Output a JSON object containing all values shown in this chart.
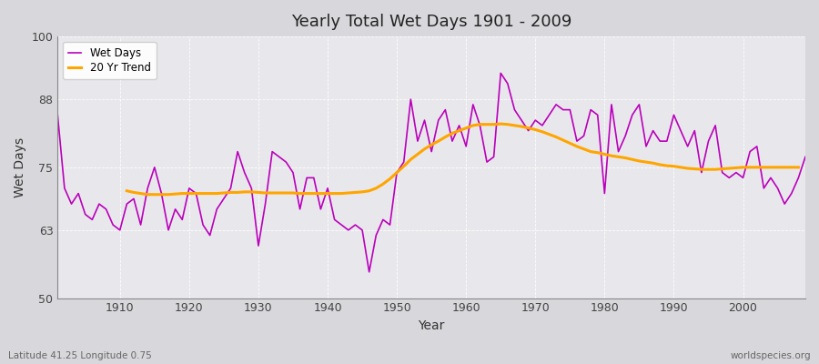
{
  "title": "Yearly Total Wet Days 1901 - 2009",
  "xlabel": "Year",
  "ylabel": "Wet Days",
  "subtitle_left": "Latitude 41.25 Longitude 0.75",
  "subtitle_right": "worldspecies.org",
  "ylim": [
    50,
    100
  ],
  "xlim": [
    1901,
    2009
  ],
  "yticks": [
    50,
    63,
    75,
    88,
    100
  ],
  "xticks": [
    1910,
    1920,
    1930,
    1940,
    1950,
    1960,
    1970,
    1980,
    1990,
    2000
  ],
  "bg_color": "#e8e8ec",
  "fig_color": "#d8d8dc",
  "line_color_wet": "#bb00bb",
  "line_color_trend": "#ffa500",
  "legend_wet": "Wet Days",
  "legend_trend": "20 Yr Trend",
  "years": [
    1901,
    1902,
    1903,
    1904,
    1905,
    1906,
    1907,
    1908,
    1909,
    1910,
    1911,
    1912,
    1913,
    1914,
    1915,
    1916,
    1917,
    1918,
    1919,
    1920,
    1921,
    1922,
    1923,
    1924,
    1925,
    1926,
    1927,
    1928,
    1929,
    1930,
    1931,
    1932,
    1933,
    1934,
    1935,
    1936,
    1937,
    1938,
    1939,
    1940,
    1941,
    1942,
    1943,
    1944,
    1945,
    1946,
    1947,
    1948,
    1949,
    1950,
    1951,
    1952,
    1953,
    1954,
    1955,
    1956,
    1957,
    1958,
    1959,
    1960,
    1961,
    1962,
    1963,
    1964,
    1965,
    1966,
    1967,
    1968,
    1969,
    1970,
    1971,
    1972,
    1973,
    1974,
    1975,
    1976,
    1977,
    1978,
    1979,
    1980,
    1981,
    1982,
    1983,
    1984,
    1985,
    1986,
    1987,
    1988,
    1989,
    1990,
    1991,
    1992,
    1993,
    1994,
    1995,
    1996,
    1997,
    1998,
    1999,
    2000,
    2001,
    2002,
    2003,
    2004,
    2005,
    2006,
    2007,
    2008,
    2009
  ],
  "wet_days": [
    85,
    71,
    68,
    70,
    66,
    65,
    68,
    67,
    64,
    63,
    68,
    69,
    64,
    71,
    75,
    70,
    63,
    67,
    65,
    71,
    70,
    64,
    62,
    67,
    69,
    71,
    78,
    74,
    71,
    60,
    68,
    78,
    77,
    76,
    74,
    67,
    73,
    73,
    67,
    71,
    65,
    64,
    63,
    64,
    63,
    55,
    62,
    65,
    64,
    74,
    76,
    88,
    80,
    84,
    78,
    84,
    86,
    80,
    83,
    79,
    87,
    83,
    76,
    77,
    93,
    91,
    86,
    84,
    82,
    84,
    83,
    85,
    87,
    86,
    86,
    80,
    81,
    86,
    85,
    70,
    87,
    78,
    81,
    85,
    87,
    79,
    82,
    80,
    80,
    85,
    82,
    79,
    82,
    74,
    80,
    83,
    74,
    73,
    74,
    73,
    78,
    79,
    71,
    73,
    71,
    68,
    70,
    73,
    77
  ],
  "trend": [
    null,
    null,
    null,
    null,
    null,
    null,
    null,
    null,
    null,
    null,
    70.5,
    70.2,
    70.0,
    69.8,
    69.8,
    69.8,
    69.8,
    69.9,
    70.0,
    70.0,
    70.0,
    70.0,
    70.0,
    70.0,
    70.1,
    70.2,
    70.2,
    70.3,
    70.3,
    70.2,
    70.1,
    70.1,
    70.1,
    70.1,
    70.1,
    70.0,
    70.0,
    70.0,
    70.0,
    70.0,
    70.0,
    70.0,
    70.1,
    70.2,
    70.3,
    70.5,
    71.0,
    71.8,
    72.8,
    74.0,
    75.2,
    76.5,
    77.5,
    78.5,
    79.3,
    80.0,
    80.8,
    81.5,
    82.0,
    82.5,
    83.0,
    83.2,
    83.2,
    83.2,
    83.3,
    83.2,
    83.0,
    82.8,
    82.5,
    82.2,
    81.8,
    81.3,
    80.8,
    80.2,
    79.6,
    79.0,
    78.5,
    78.0,
    77.8,
    77.5,
    77.2,
    77.0,
    76.8,
    76.5,
    76.2,
    76.0,
    75.8,
    75.5,
    75.3,
    75.2,
    75.0,
    74.8,
    74.7,
    74.6,
    74.6,
    74.6,
    74.7,
    74.8,
    74.9,
    75.0,
    75.0,
    75.0,
    75.0,
    75.0,
    75.0,
    75.0,
    75.0,
    75.0,
    null
  ]
}
